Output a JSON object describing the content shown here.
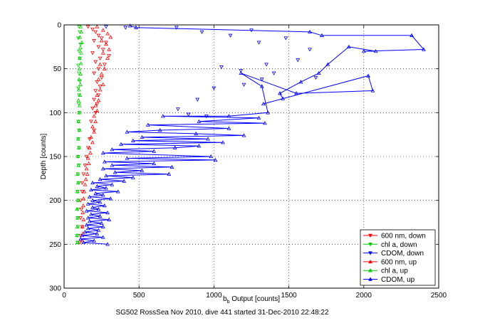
{
  "chart_data": {
    "type": "scatter",
    "xlabel_base": "b",
    "xlabel_sub": "b",
    "xlabel_rest": " Output [counts]",
    "ylabel": "Depth [counts]",
    "caption": "SG502 RossSea Nov 2010, dive 441 started 31-Dec-2010 22:48:22",
    "xlim": [
      0,
      2500
    ],
    "ylim": [
      0,
      300
    ],
    "y_reversed": true,
    "grid": true,
    "legend_position": "bottom-right",
    "x_ticks": [
      "0",
      "500",
      "1000",
      "1500",
      "2000",
      "2500"
    ],
    "y_ticks": [
      "0",
      "50",
      "100",
      "150",
      "200",
      "250",
      "300"
    ],
    "series": [
      {
        "name": "600 nm, down",
        "color": "#ff0000",
        "marker": "triangle-down",
        "line": false,
        "points": [
          [
            160,
            2
          ],
          [
            190,
            5
          ],
          [
            210,
            8
          ],
          [
            230,
            12
          ],
          [
            250,
            15
          ],
          [
            200,
            18
          ],
          [
            280,
            20
          ],
          [
            230,
            25
          ],
          [
            260,
            28
          ],
          [
            190,
            32
          ],
          [
            300,
            35
          ],
          [
            240,
            38
          ],
          [
            210,
            42
          ],
          [
            270,
            45
          ],
          [
            230,
            50
          ],
          [
            200,
            55
          ],
          [
            250,
            60
          ],
          [
            220,
            65
          ],
          [
            240,
            70
          ],
          [
            210,
            75
          ],
          [
            230,
            80
          ],
          [
            200,
            85
          ],
          [
            220,
            90
          ],
          [
            190,
            95
          ],
          [
            210,
            100
          ],
          [
            180,
            110
          ],
          [
            200,
            120
          ],
          [
            170,
            130
          ],
          [
            160,
            140
          ],
          [
            150,
            150
          ],
          [
            140,
            160
          ],
          [
            130,
            170
          ],
          [
            120,
            180
          ],
          [
            120,
            190
          ],
          [
            110,
            200
          ],
          [
            115,
            210
          ],
          [
            110,
            220
          ],
          [
            120,
            230
          ],
          [
            110,
            240
          ],
          [
            105,
            248
          ]
        ]
      },
      {
        "name": "chl a, down",
        "color": "#00cc00",
        "marker": "triangle-down",
        "line": false,
        "points": [
          [
            100,
            2
          ],
          [
            105,
            8
          ],
          [
            95,
            15
          ],
          [
            110,
            22
          ],
          [
            100,
            30
          ],
          [
            105,
            38
          ],
          [
            95,
            46
          ],
          [
            100,
            55
          ],
          [
            105,
            64
          ],
          [
            95,
            72
          ],
          [
            100,
            80
          ],
          [
            98,
            90
          ],
          [
            102,
            100
          ],
          [
            96,
            110
          ],
          [
            100,
            120
          ],
          [
            95,
            130
          ],
          [
            100,
            140
          ],
          [
            94,
            150
          ],
          [
            98,
            160
          ],
          [
            92,
            170
          ],
          [
            96,
            180
          ],
          [
            90,
            190
          ],
          [
            94,
            200
          ],
          [
            92,
            210
          ],
          [
            90,
            220
          ],
          [
            92,
            230
          ],
          [
            88,
            240
          ],
          [
            90,
            248
          ]
        ]
      },
      {
        "name": "CDOM, down",
        "color": "#0000ff",
        "marker": "triangle-down",
        "line": false,
        "points": [
          [
            280,
            2
          ],
          [
            410,
            3
          ],
          [
            750,
            3
          ],
          [
            920,
            8
          ],
          [
            1250,
            6
          ],
          [
            1110,
            12
          ],
          [
            1300,
            20
          ],
          [
            1480,
            15
          ],
          [
            1640,
            28
          ],
          [
            1560,
            40
          ],
          [
            1350,
            45
          ],
          [
            1050,
            48
          ],
          [
            1180,
            52
          ],
          [
            1400,
            55
          ],
          [
            1680,
            60
          ],
          [
            1320,
            62
          ],
          [
            1200,
            68
          ],
          [
            1000,
            72
          ],
          [
            890,
            85
          ],
          [
            760,
            96
          ],
          [
            830,
            102
          ],
          [
            950,
            104
          ]
        ]
      },
      {
        "name": "600 nm, up",
        "color": "#ff0000",
        "marker": "triangle-up",
        "line": false,
        "points": [
          [
            220,
            2
          ],
          [
            260,
            6
          ],
          [
            290,
            10
          ],
          [
            310,
            14
          ],
          [
            250,
            18
          ],
          [
            280,
            22
          ],
          [
            300,
            28
          ],
          [
            260,
            32
          ],
          [
            290,
            38
          ],
          [
            240,
            45
          ],
          [
            270,
            50
          ],
          [
            250,
            56
          ],
          [
            230,
            62
          ],
          [
            260,
            68
          ],
          [
            240,
            74
          ],
          [
            220,
            80
          ],
          [
            230,
            86
          ],
          [
            210,
            92
          ],
          [
            220,
            98
          ],
          [
            200,
            104
          ],
          [
            210,
            110
          ],
          [
            190,
            116
          ],
          [
            200,
            122
          ],
          [
            180,
            128
          ],
          [
            190,
            134
          ],
          [
            170,
            140
          ],
          [
            175,
            146
          ],
          [
            160,
            152
          ],
          [
            165,
            158
          ],
          [
            150,
            164
          ],
          [
            155,
            170
          ],
          [
            145,
            176
          ],
          [
            140,
            182
          ],
          [
            135,
            190
          ],
          [
            130,
            198
          ],
          [
            128,
            206
          ],
          [
            125,
            214
          ],
          [
            130,
            222
          ],
          [
            122,
            230
          ],
          [
            125,
            238
          ],
          [
            120,
            246
          ]
        ]
      },
      {
        "name": "chl a, up",
        "color": "#00cc00",
        "marker": "triangle-up",
        "line": false,
        "points": [
          [
            110,
            2
          ],
          [
            115,
            8
          ],
          [
            105,
            14
          ],
          [
            118,
            20
          ],
          [
            108,
            26
          ],
          [
            114,
            32
          ],
          [
            104,
            38
          ],
          [
            112,
            44
          ],
          [
            102,
            50
          ],
          [
            110,
            56
          ],
          [
            100,
            62
          ],
          [
            108,
            68
          ],
          [
            98,
            74
          ],
          [
            106,
            80
          ],
          [
            96,
            86
          ],
          [
            104,
            92
          ],
          [
            100,
            100
          ],
          [
            96,
            110
          ],
          [
            102,
            120
          ],
          [
            94,
            130
          ],
          [
            98,
            140
          ],
          [
            92,
            150
          ],
          [
            96,
            160
          ],
          [
            90,
            170
          ],
          [
            94,
            180
          ],
          [
            88,
            190
          ],
          [
            92,
            200
          ],
          [
            86,
            210
          ],
          [
            90,
            220
          ],
          [
            88,
            230
          ],
          [
            86,
            240
          ],
          [
            88,
            248
          ]
        ]
      },
      {
        "name": "CDOM, up",
        "color": "#0000ff",
        "marker": "triangle-up",
        "line": true,
        "points": [
          [
            440,
            1
          ],
          [
            480,
            3
          ],
          [
            1640,
            8
          ],
          [
            1720,
            12
          ],
          [
            2320,
            12
          ],
          [
            2400,
            28
          ],
          [
            2000,
            30
          ],
          [
            2080,
            30
          ],
          [
            1900,
            25
          ],
          [
            1760,
            45
          ],
          [
            1700,
            55
          ],
          [
            1580,
            65
          ],
          [
            1440,
            78
          ],
          [
            1460,
            84
          ],
          [
            1330,
            90
          ],
          [
            2030,
            58
          ],
          [
            2060,
            75
          ],
          [
            1550,
            78
          ],
          [
            1180,
            55
          ],
          [
            1320,
            70
          ],
          [
            1360,
            100
          ],
          [
            1100,
            104
          ],
          [
            660,
            104
          ],
          [
            1300,
            106
          ],
          [
            900,
            110
          ],
          [
            1340,
            112
          ],
          [
            560,
            114
          ],
          [
            1100,
            118
          ],
          [
            640,
            120
          ],
          [
            420,
            122
          ],
          [
            880,
            124
          ],
          [
            1200,
            126
          ],
          [
            520,
            128
          ],
          [
            960,
            130
          ],
          [
            460,
            132
          ],
          [
            1060,
            134
          ],
          [
            380,
            136
          ],
          [
            900,
            138
          ],
          [
            740,
            140
          ],
          [
            320,
            142
          ],
          [
            600,
            144
          ],
          [
            260,
            146
          ],
          [
            980,
            150
          ],
          [
            420,
            152
          ],
          [
            1010,
            154
          ],
          [
            270,
            156
          ],
          [
            600,
            158
          ],
          [
            320,
            160
          ],
          [
            720,
            162
          ],
          [
            260,
            164
          ],
          [
            520,
            166
          ],
          [
            340,
            168
          ],
          [
            700,
            170
          ],
          [
            280,
            172
          ],
          [
            460,
            174
          ],
          [
            240,
            176
          ],
          [
            400,
            178
          ],
          [
            190,
            180
          ],
          [
            320,
            182
          ],
          [
            220,
            184
          ],
          [
            280,
            186
          ],
          [
            180,
            188
          ],
          [
            360,
            190
          ],
          [
            210,
            192
          ],
          [
            260,
            194
          ],
          [
            170,
            196
          ],
          [
            310,
            198
          ],
          [
            190,
            200
          ],
          [
            240,
            202
          ],
          [
            160,
            204
          ],
          [
            270,
            206
          ],
          [
            190,
            208
          ],
          [
            230,
            210
          ],
          [
            150,
            212
          ],
          [
            290,
            214
          ],
          [
            180,
            216
          ],
          [
            240,
            218
          ],
          [
            160,
            220
          ],
          [
            300,
            222
          ],
          [
            170,
            224
          ],
          [
            250,
            226
          ],
          [
            150,
            228
          ],
          [
            260,
            230
          ],
          [
            160,
            232
          ],
          [
            230,
            234
          ],
          [
            140,
            236
          ],
          [
            220,
            238
          ],
          [
            120,
            240
          ],
          [
            260,
            242
          ],
          [
            110,
            244
          ],
          [
            200,
            246
          ],
          [
            130,
            248
          ],
          [
            290,
            250
          ]
        ]
      }
    ]
  }
}
